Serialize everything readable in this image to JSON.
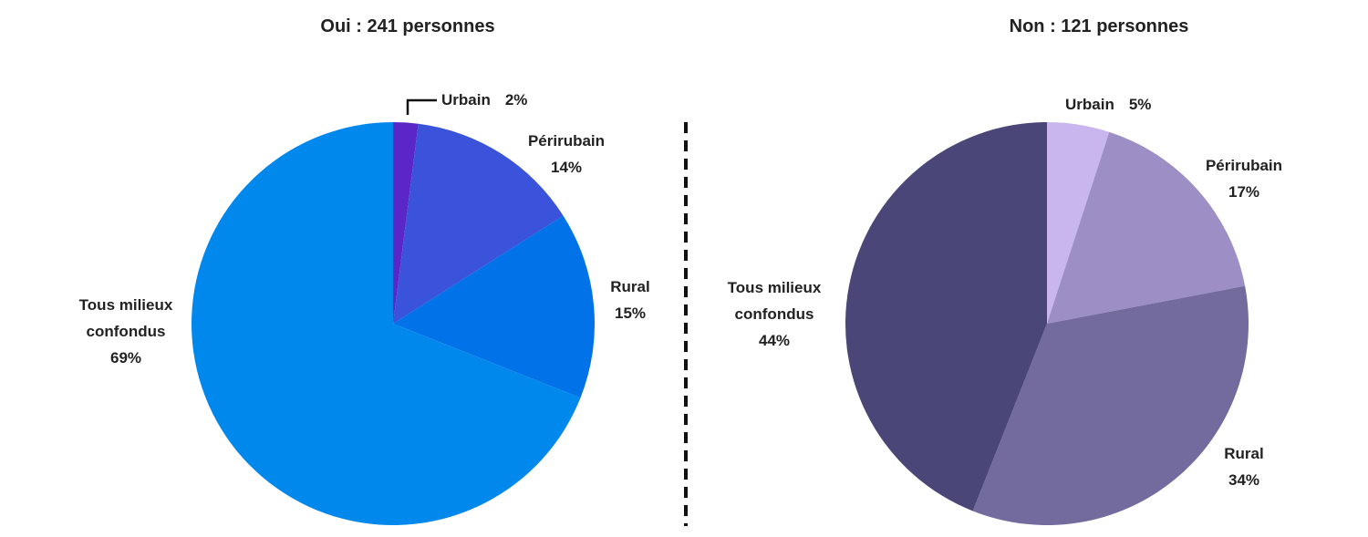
{
  "chart_data": [
    {
      "type": "pie",
      "title": "Oui : 241 personnes",
      "slices": [
        {
          "label": "Urbain",
          "value": 2,
          "display": "2%",
          "color": "#5B26C8"
        },
        {
          "label": "Périrubain",
          "value": 14,
          "display": "14%",
          "color": "#3A53DA"
        },
        {
          "label": "Rural",
          "value": 15,
          "display": "15%",
          "color": "#0172E8"
        },
        {
          "label": "Tous milieux confondus",
          "value": 69,
          "display": "69%",
          "color": "#0188EC"
        }
      ]
    },
    {
      "type": "pie",
      "title": "Non : 121 personnes",
      "slices": [
        {
          "label": "Urbain",
          "value": 5,
          "display": "5%",
          "color": "#C9B6EF"
        },
        {
          "label": "Périrubain",
          "value": 17,
          "display": "17%",
          "color": "#9D8FC6"
        },
        {
          "label": "Rural",
          "value": 34,
          "display": "34%",
          "color": "#736A9E"
        },
        {
          "label": "Tous milieux confondus",
          "value": 44,
          "display": "44%",
          "color": "#4A4677"
        }
      ]
    }
  ]
}
